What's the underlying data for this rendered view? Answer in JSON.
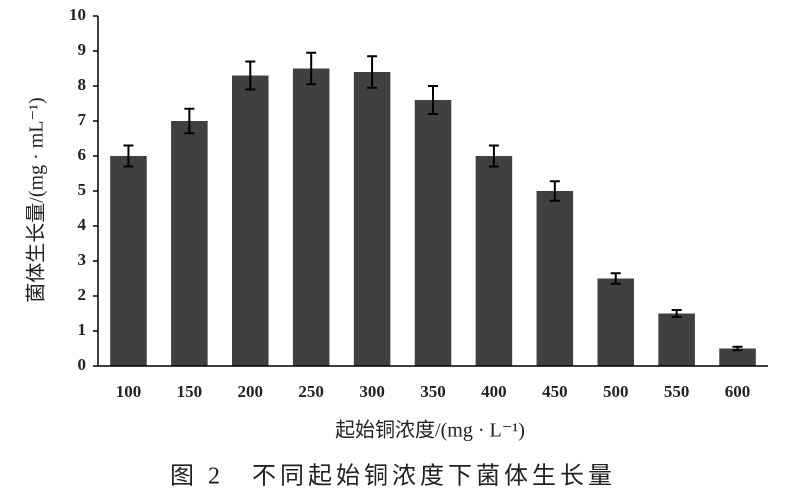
{
  "chart_data": {
    "type": "bar",
    "caption": "图 2　不同起始铜浓度下菌体生长量",
    "x_label": "起始铜浓度/(mg · L⁻¹)",
    "y_label": "菌体生长量/(mg · mL⁻¹)",
    "categories": [
      "100",
      "150",
      "200",
      "250",
      "300",
      "350",
      "400",
      "450",
      "500",
      "550",
      "600"
    ],
    "values": [
      6.0,
      7.0,
      8.3,
      8.5,
      8.4,
      7.6,
      6.0,
      5.0,
      2.5,
      1.5,
      0.5
    ],
    "errors": [
      0.3,
      0.35,
      0.4,
      0.45,
      0.45,
      0.4,
      0.3,
      0.28,
      0.15,
      0.1,
      0.05
    ],
    "color": "#404040",
    "ylim": [
      0,
      10
    ],
    "yticks": [
      0,
      1,
      2,
      3,
      4,
      5,
      6,
      7,
      8,
      9,
      10
    ],
    "grid": false
  }
}
